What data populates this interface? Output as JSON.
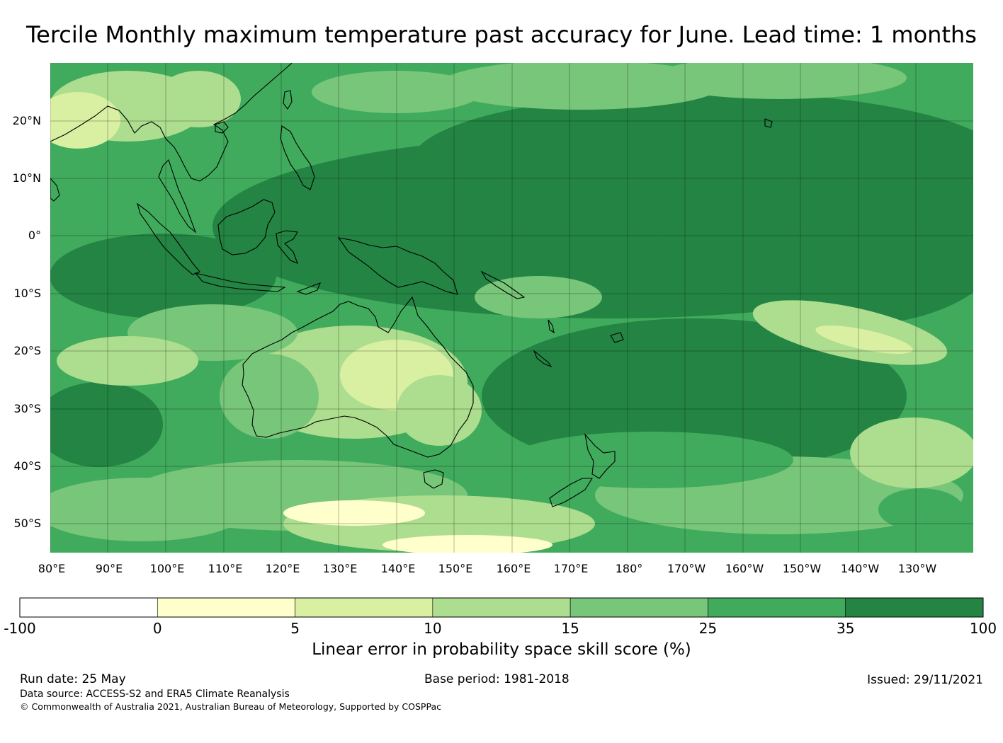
{
  "title": "Tercile Monthly maximum temperature past accuracy for June. Lead time: 1 months",
  "map": {
    "lat_labels": [
      "20°N",
      "10°N",
      "0°",
      "10°S",
      "20°S",
      "30°S",
      "40°S",
      "50°S"
    ],
    "lon_labels": [
      "80°E",
      "90°E",
      "100°E",
      "110°E",
      "120°E",
      "130°E",
      "140°E",
      "150°E",
      "160°E",
      "170°E",
      "180°",
      "170°W",
      "160°W",
      "150°W",
      "140°W",
      "130°W"
    ],
    "lat_range": [
      "55°S",
      "30°N"
    ],
    "lon_range": [
      "80°E",
      "120°W"
    ]
  },
  "colorbar": {
    "ticks": [
      "-100",
      "0",
      "5",
      "10",
      "15",
      "25",
      "35",
      "100"
    ],
    "colors": [
      "#ffffff",
      "#ffffcc",
      "#d9f0a3",
      "#addd8e",
      "#78c679",
      "#41ab5d",
      "#238443"
    ],
    "label": "Linear error in probability space skill score (%)"
  },
  "footer": {
    "run_date": "Run date: 25 May",
    "base_period": "Base period: 1981-2018",
    "issued": "Issued: 29/11/2021",
    "data_source": "Data source: ACCESS-S2 and ERA5 Climate Reanalysis",
    "copyright": "© Commonwealth of Australia 2021, Australian Bureau of Meteorology, Supported by COSPPac"
  }
}
